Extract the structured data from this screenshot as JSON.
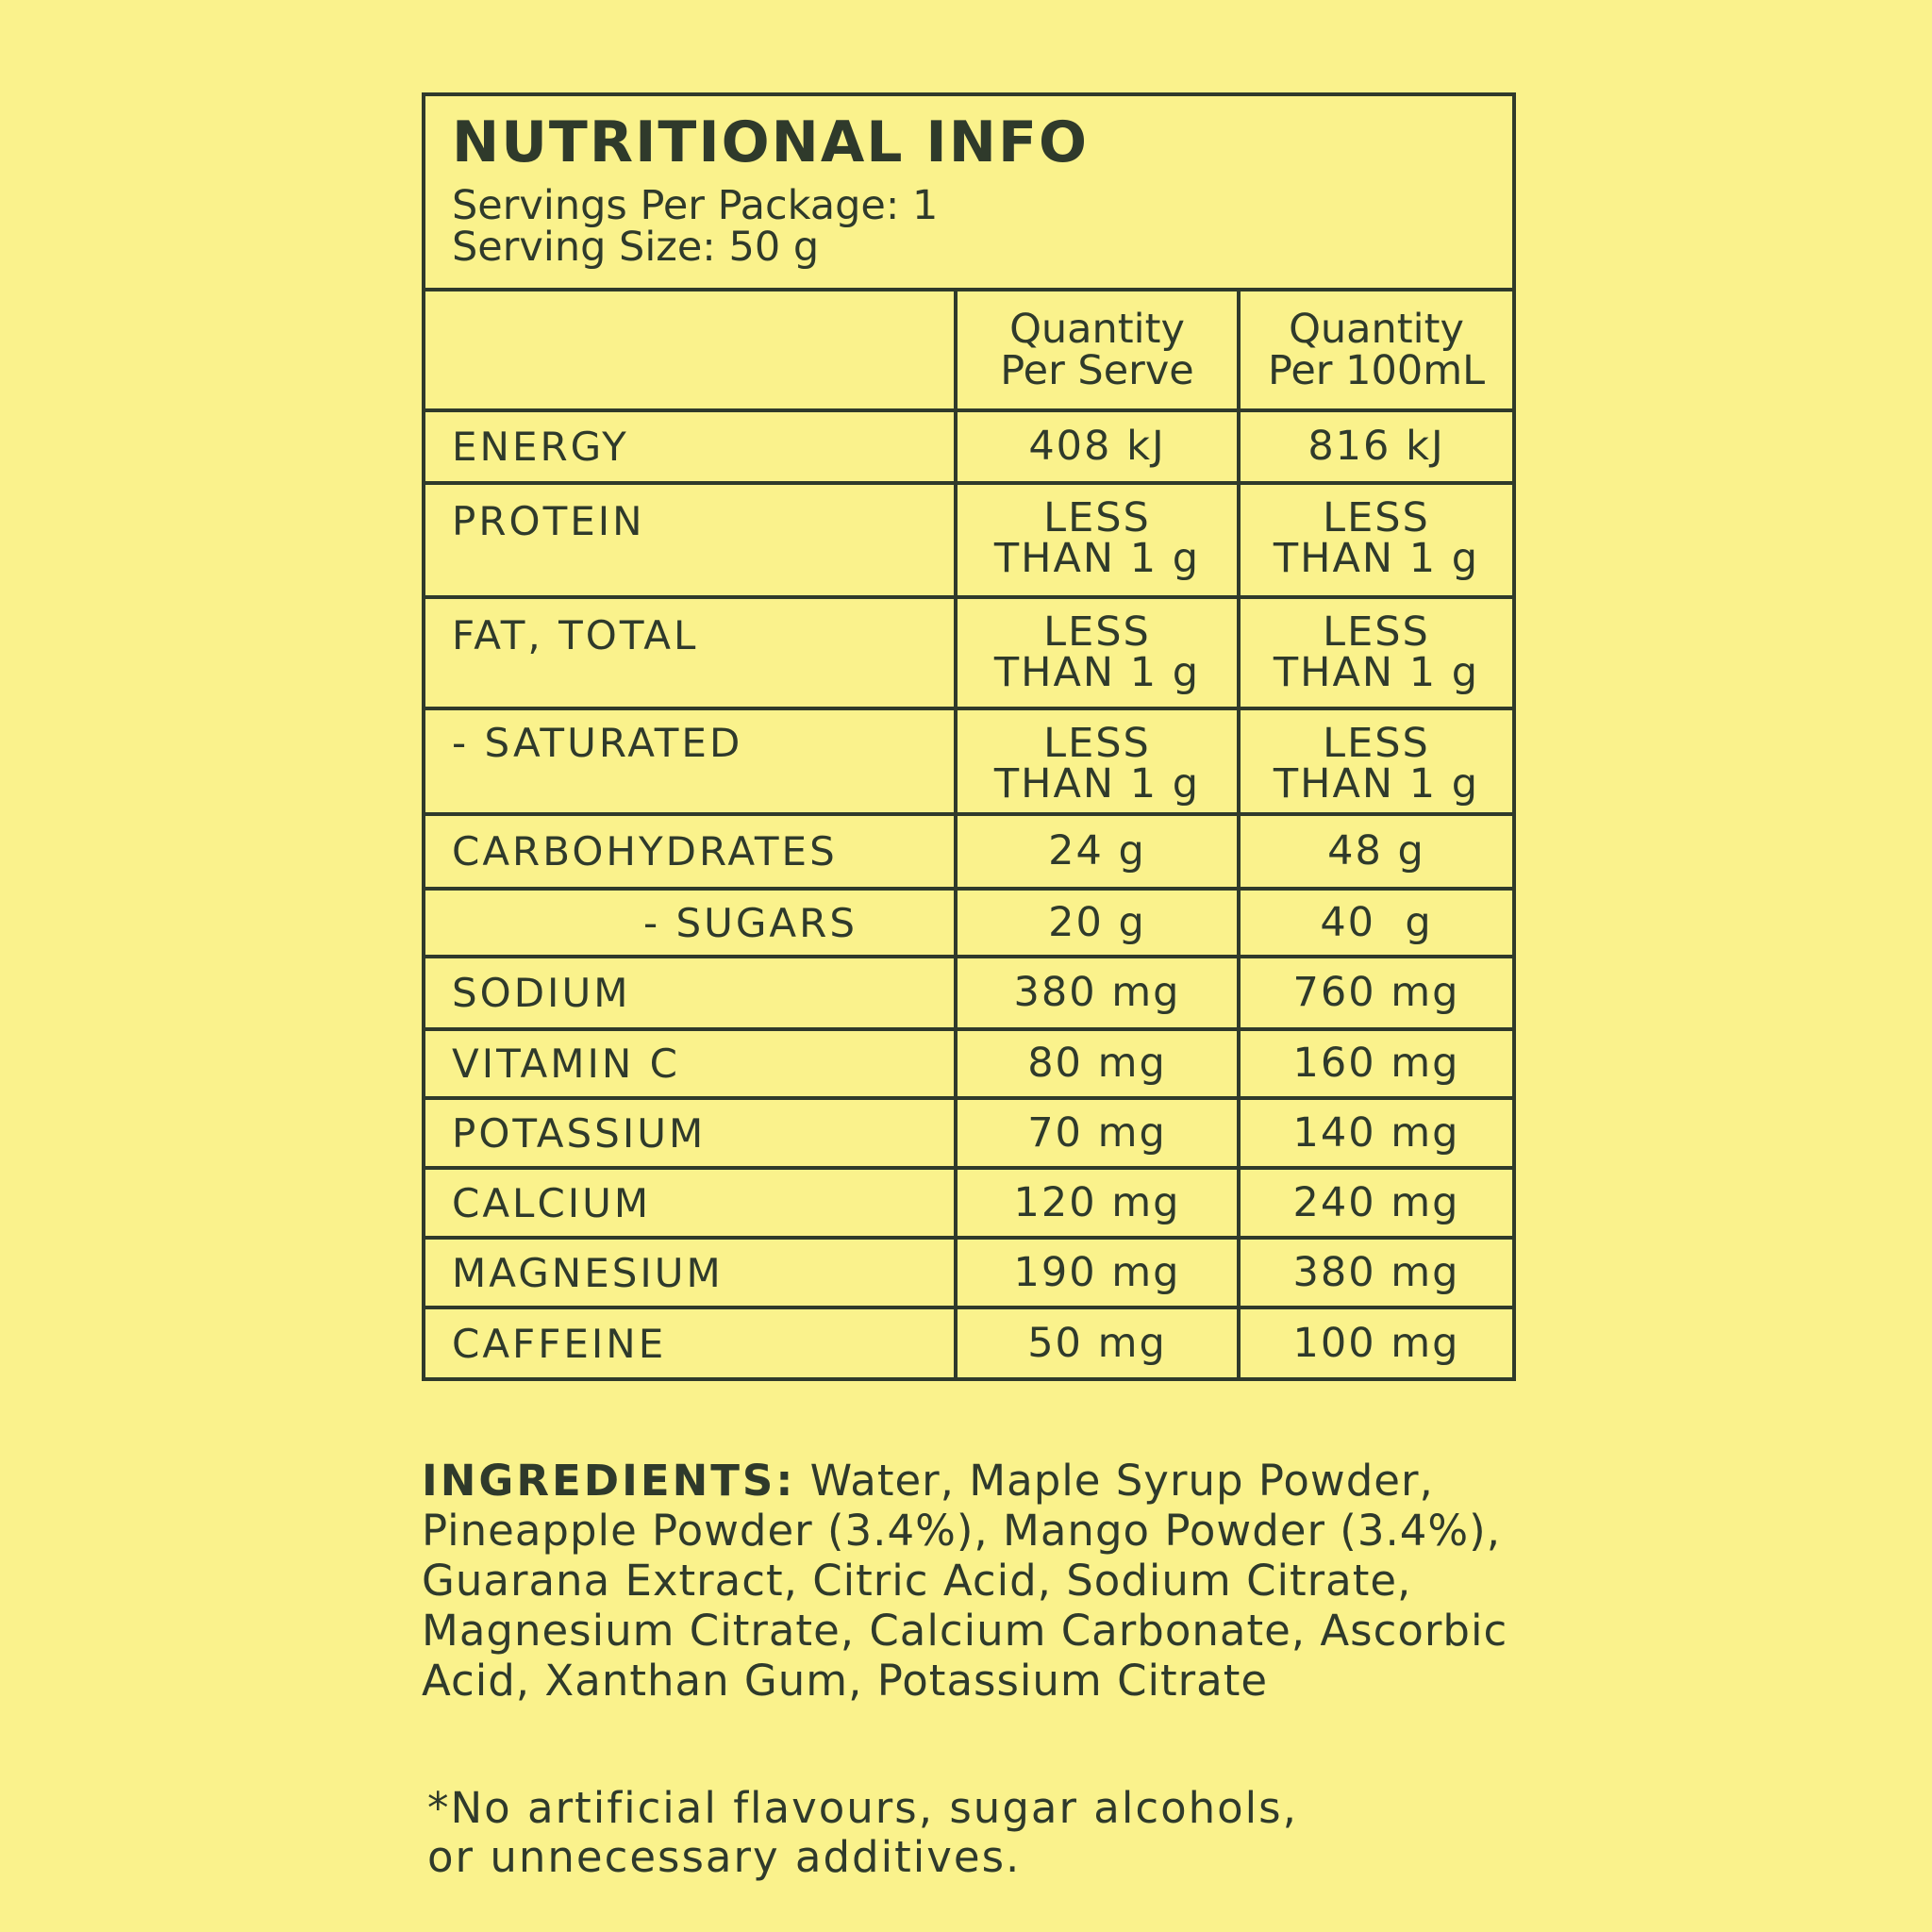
{
  "panel": {
    "title": "NUTRITIONAL INFO",
    "servings_per_package": "Servings Per Package: 1",
    "serving_size": "Serving Size: 50 g"
  },
  "table": {
    "columns": [
      {
        "line1": "Quantity",
        "line2": "Per Serve"
      },
      {
        "line1": "Quantity",
        "line2": "Per 100mL"
      }
    ],
    "rows": [
      {
        "name": "ENERGY",
        "per_serve": [
          "408 kJ"
        ],
        "per_100ml": [
          "816 kJ"
        ]
      },
      {
        "name": "PROTEIN",
        "per_serve": [
          "LESS",
          "THAN 1 g"
        ],
        "per_100ml": [
          "LESS",
          "THAN 1 g"
        ]
      },
      {
        "name": "FAT, TOTAL",
        "per_serve": [
          "LESS",
          "THAN 1 g"
        ],
        "per_100ml": [
          "LESS",
          "THAN 1 g"
        ]
      },
      {
        "name": "- SATURATED",
        "per_serve": [
          "LESS",
          "THAN 1 g"
        ],
        "per_100ml": [
          "LESS",
          "THAN 1 g"
        ]
      },
      {
        "name": "CARBOHYDRATES",
        "per_serve": [
          "24 g"
        ],
        "per_100ml": [
          "48 g"
        ]
      },
      {
        "name": "- SUGARS",
        "per_serve": [
          "20 g"
        ],
        "per_100ml": [
          "40  g"
        ]
      },
      {
        "name": "SODIUM",
        "per_serve": [
          "380 mg"
        ],
        "per_100ml": [
          "760 mg"
        ]
      },
      {
        "name": "VITAMIN C",
        "per_serve": [
          "80 mg"
        ],
        "per_100ml": [
          "160 mg"
        ]
      },
      {
        "name": "POTASSIUM",
        "per_serve": [
          "70 mg"
        ],
        "per_100ml": [
          "140 mg"
        ]
      },
      {
        "name": "CALCIUM",
        "per_serve": [
          "120 mg"
        ],
        "per_100ml": [
          "240 mg"
        ]
      },
      {
        "name": "MAGNESIUM",
        "per_serve": [
          "190 mg"
        ],
        "per_100ml": [
          "380 mg"
        ]
      },
      {
        "name": "CAFFEINE",
        "per_serve": [
          "50 mg"
        ],
        "per_100ml": [
          "100 mg"
        ]
      }
    ]
  },
  "ingredients": {
    "label": "INGREDIENTS:",
    "text": "Water, Maple Syrup Powder, Pineapple Powder (3.4%), Mango Powder (3.4%), Guarana Extract, Citric Acid, Sodium Citrate, Magnesium Citrate, Calcium Carbonate, Ascorbic Acid, Xanthan Gum, Potassium Citrate"
  },
  "footnote": {
    "line1": "*No artificial flavours, sugar alcohols,",
    "line2": "or unnecessary additives."
  },
  "colors": {
    "background": "#faf28c",
    "ink": "#2f3a2b"
  }
}
